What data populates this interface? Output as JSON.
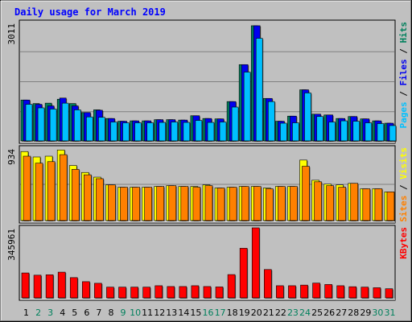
{
  "chart_data": {
    "type": "bar",
    "title": "Daily usage for March 2019",
    "categories": [
      "1",
      "2",
      "3",
      "4",
      "5",
      "6",
      "7",
      "8",
      "9",
      "10",
      "11",
      "12",
      "13",
      "14",
      "15",
      "16",
      "17",
      "18",
      "19",
      "20",
      "21",
      "22",
      "23",
      "24",
      "25",
      "26",
      "27",
      "28",
      "29",
      "30",
      "31"
    ],
    "weekend_days": [
      "2",
      "3",
      "9",
      "10",
      "16",
      "17",
      "23",
      "24",
      "30",
      "31"
    ],
    "colors": {
      "hits": "#0000f0",
      "files": "#00c0ff",
      "pages": "#00c0ff",
      "sites": "#ff8000",
      "visits": "#ffff00",
      "kbytes": "#ff0000",
      "weekday_label": "#000000",
      "weekend_label": "#00805c",
      "title": "#0000ff",
      "panel_bg": "#c0c0c0",
      "frame_bg": "#c0c0c0"
    },
    "panels": [
      {
        "ymax_label": "3011",
        "ymax": 3011,
        "legend": [
          {
            "text": "Pages",
            "color": "#00c0ff"
          },
          {
            "text": "Files",
            "color": "#0000f0"
          },
          {
            "text": "Hits",
            "color": "#00805c"
          }
        ],
        "series": [
          {
            "name": "Hits",
            "color": "#00805c",
            "values": [
              1040,
              950,
              960,
              1060,
              950,
              720,
              790,
              570,
              500,
              510,
              510,
              540,
              540,
              530,
              640,
              570,
              560,
              1000,
              1940,
              2930,
              1080,
              500,
              630,
              1300,
              680,
              660,
              570,
              620,
              560,
              510,
              450
            ]
          },
          {
            "name": "Files",
            "color": "#0000f0",
            "values": [
              1040,
              930,
              890,
              1090,
              890,
              720,
              780,
              570,
              500,
              510,
              510,
              540,
              540,
              530,
              640,
              570,
              560,
              1000,
              1940,
              2930,
              1080,
              500,
              630,
              1300,
              680,
              660,
              570,
              620,
              560,
              510,
              450
            ]
          },
          {
            "name": "Pages",
            "color": "#00c0ff",
            "values": [
              930,
              840,
              810,
              960,
              790,
              610,
              600,
              480,
              460,
              460,
              460,
              470,
              480,
              470,
              520,
              470,
              480,
              860,
              1750,
              2610,
              1000,
              450,
              460,
              1220,
              620,
              480,
              510,
              500,
              460,
              440,
              390
            ]
          }
        ]
      },
      {
        "ymax_label": "934",
        "ymax": 934,
        "legend": [
          {
            "text": "Sites",
            "color": "#ff8000"
          },
          {
            "text": "Visits",
            "color": "#ffff00"
          }
        ],
        "series": [
          {
            "name": "Visits",
            "color": "#ffff00",
            "values": [
              890,
              820,
              830,
              910,
              710,
              620,
              560,
              460,
              430,
              430,
              430,
              440,
              450,
              440,
              440,
              460,
              420,
              430,
              440,
              440,
              420,
              440,
              440,
              780,
              520,
              470,
              460,
              480,
              410,
              410,
              370
            ]
          },
          {
            "name": "Sites",
            "color": "#ff8000",
            "values": [
              830,
              740,
              760,
              850,
              660,
              590,
              540,
              460,
              430,
              430,
              430,
              440,
              450,
              440,
              430,
              450,
              420,
              430,
              440,
              440,
              410,
              440,
              440,
              700,
              500,
              450,
              430,
              480,
              410,
              410,
              370
            ]
          }
        ]
      },
      {
        "ymax_label": "345961",
        "ymax": 345961,
        "legend": [
          {
            "text": "KBytes",
            "color": "#ff0000"
          }
        ],
        "series": [
          {
            "name": "KBytes",
            "color": "#ff0000",
            "values": [
              123000,
              112000,
              114000,
              127000,
              100000,
              80000,
              72000,
              53000,
              53000,
              53000,
              53000,
              60000,
              56000,
              56000,
              60000,
              56000,
              54000,
              115000,
              245000,
              345961,
              140000,
              60000,
              60000,
              63000,
              73000,
              66000,
              60000,
              55000,
              53000,
              50000,
              45000
            ]
          }
        ]
      }
    ]
  }
}
